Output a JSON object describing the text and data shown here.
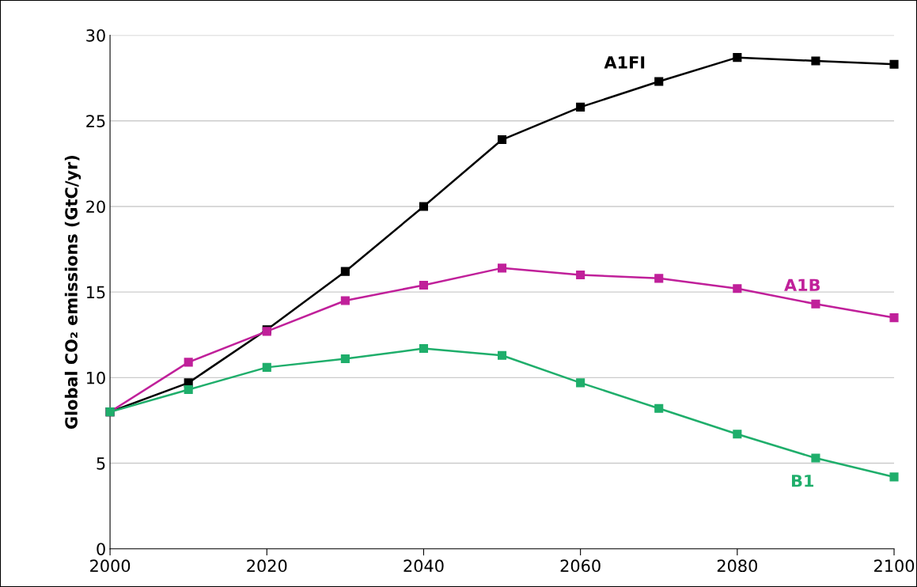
{
  "chart_data": {
    "type": "line",
    "ylabel": "Global CO₂ emissions (GtC/yr)",
    "x": [
      2000,
      2010,
      2020,
      2030,
      2040,
      2050,
      2060,
      2070,
      2080,
      2090,
      2100
    ],
    "series": [
      {
        "name": "A1FI",
        "color": "#000000",
        "values": [
          8.0,
          9.7,
          12.8,
          16.2,
          20.0,
          23.9,
          25.8,
          27.3,
          28.7,
          28.5,
          28.3
        ]
      },
      {
        "name": "A1B",
        "color": "#c0209a",
        "values": [
          8.0,
          10.9,
          12.7,
          14.5,
          15.4,
          16.4,
          16.0,
          15.8,
          15.2,
          14.3,
          13.5
        ]
      },
      {
        "name": "B1",
        "color": "#1fae6b",
        "values": [
          8.0,
          9.3,
          10.6,
          11.1,
          11.7,
          11.3,
          9.7,
          8.2,
          6.7,
          5.3,
          4.2
        ]
      }
    ],
    "xlim": [
      2000,
      2100
    ],
    "xticks": [
      2000,
      2020,
      2040,
      2060,
      2080,
      2100
    ],
    "ylim": [
      0,
      30
    ],
    "yticks": [
      0,
      5,
      10,
      15,
      20,
      25,
      30
    ],
    "grid": "y",
    "marker": "square",
    "line_style": "solid",
    "legend": false
  }
}
